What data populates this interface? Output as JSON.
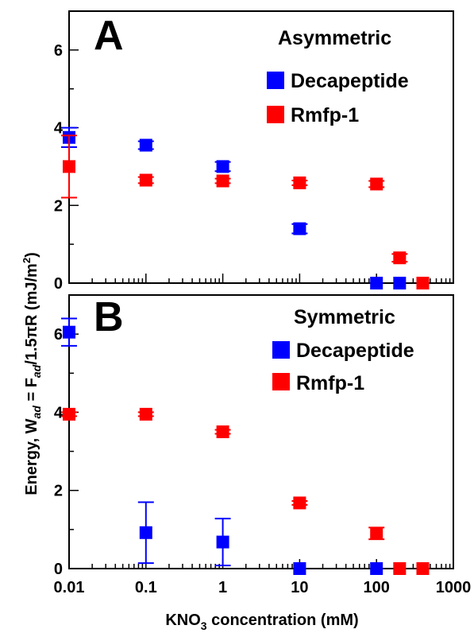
{
  "figure": {
    "ylabel_prefix": "Energy, W",
    "ylabel_sub1": "ad",
    "ylabel_mid": " = F",
    "ylabel_sub2": "ad",
    "ylabel_mid2": "/1.5πR (mJ/m",
    "ylabel_sup": "2",
    "ylabel_end": ")",
    "xlabel_prefix": "KNO",
    "xlabel_sub": "3",
    "xlabel_suffix": " concentration (mM)"
  },
  "colors": {
    "decapeptide": "#0000ff",
    "rmfp1": "#ff0000"
  },
  "chart_data": [
    {
      "type": "scatter",
      "panel_label": "A",
      "title": "Asymmetric",
      "x_scale": "log",
      "xlim": [
        0.01,
        1000
      ],
      "ylim": [
        0,
        7
      ],
      "y_ticks": [
        0,
        2,
        4,
        6
      ],
      "x_tick_labels": [],
      "legend_position": "top-right",
      "series": [
        {
          "name": "Decapeptide",
          "color": "#0000ff",
          "x": [
            0.01,
            0.1,
            1,
            10,
            100,
            200
          ],
          "y": [
            3.75,
            3.55,
            3.0,
            1.4,
            0,
            0
          ],
          "err": [
            0.25,
            0.1,
            0.12,
            0.12,
            0,
            0
          ]
        },
        {
          "name": "Rmfp-1",
          "color": "#ff0000",
          "x": [
            0.01,
            0.1,
            1,
            10,
            100,
            200,
            400
          ],
          "y": [
            3.0,
            2.65,
            2.63,
            2.58,
            2.55,
            0.65,
            0
          ],
          "err": [
            0.8,
            0.08,
            0.06,
            0.06,
            0.08,
            0.1,
            0
          ]
        }
      ]
    },
    {
      "type": "scatter",
      "panel_label": "B",
      "title": "Symmetric",
      "x_scale": "log",
      "xlim": [
        0.01,
        1000
      ],
      "ylim": [
        0,
        7
      ],
      "y_ticks": [
        0,
        2,
        4,
        6
      ],
      "x_tick_labels": [
        "0.01",
        "0.1",
        "1",
        "10",
        "100",
        "1000"
      ],
      "legend_position": "top-right",
      "series": [
        {
          "name": "Decapeptide",
          "color": "#0000ff",
          "x": [
            0.01,
            0.1,
            1,
            10,
            100
          ],
          "y": [
            6.05,
            0.92,
            0.68,
            0,
            0
          ],
          "err": [
            0.35,
            0.78,
            0.6,
            0,
            0
          ]
        },
        {
          "name": "Rmfp-1",
          "color": "#ff0000",
          "x": [
            0.01,
            0.1,
            1,
            10,
            100,
            200,
            400
          ],
          "y": [
            3.95,
            3.95,
            3.5,
            1.68,
            0.9,
            0,
            0
          ],
          "err": [
            0.05,
            0.05,
            0.05,
            0.05,
            0.15,
            0,
            0
          ]
        }
      ]
    }
  ]
}
